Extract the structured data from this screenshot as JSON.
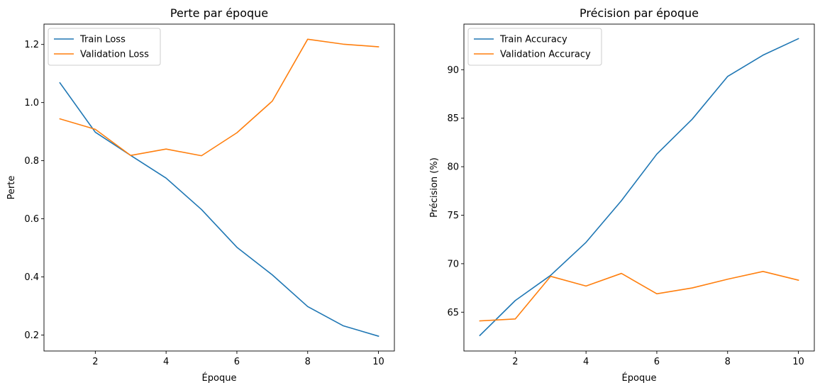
{
  "chart_data": [
    {
      "type": "line",
      "title": "Perte par époque",
      "xlabel": "Époque",
      "ylabel": "Perte",
      "x": [
        1,
        2,
        3,
        4,
        5,
        6,
        7,
        8,
        9,
        10
      ],
      "xlim": [
        0.55,
        10.45
      ],
      "ylim": [
        0.145,
        1.27
      ],
      "xticks": [
        2,
        4,
        6,
        8,
        10
      ],
      "xtick_labels": [
        "2",
        "4",
        "6",
        "8",
        "10"
      ],
      "yticks": [
        0.2,
        0.4,
        0.6,
        0.8,
        1.0,
        1.2
      ],
      "ytick_labels": [
        "0.2",
        "0.4",
        "0.6",
        "0.8",
        "1.0",
        "1.2"
      ],
      "grid": false,
      "legend_position": "top-left",
      "series": [
        {
          "name": "Train Loss",
          "color": "#1f77b4",
          "values": [
            1.068,
            0.898,
            0.818,
            0.74,
            0.632,
            0.502,
            0.407,
            0.298,
            0.232,
            0.196
          ]
        },
        {
          "name": "Validation Loss",
          "color": "#ff7f0e",
          "values": [
            0.944,
            0.908,
            0.818,
            0.84,
            0.817,
            0.896,
            1.005,
            1.218,
            1.201,
            1.192
          ]
        }
      ]
    },
    {
      "type": "line",
      "title": "Précision par époque",
      "xlabel": "Époque",
      "ylabel": "Précision (%)",
      "x": [
        1,
        2,
        3,
        4,
        5,
        6,
        7,
        8,
        9,
        10
      ],
      "xlim": [
        0.55,
        10.45
      ],
      "ylim": [
        61.0,
        94.7
      ],
      "xticks": [
        2,
        4,
        6,
        8,
        10
      ],
      "xtick_labels": [
        "2",
        "4",
        "6",
        "8",
        "10"
      ],
      "yticks": [
        65,
        70,
        75,
        80,
        85,
        90
      ],
      "ytick_labels": [
        "65",
        "70",
        "75",
        "80",
        "85",
        "90"
      ],
      "grid": false,
      "legend_position": "top-left",
      "series": [
        {
          "name": "Train Accuracy",
          "color": "#1f77b4",
          "values": [
            62.6,
            66.2,
            68.8,
            72.2,
            76.5,
            81.3,
            84.9,
            89.3,
            91.5,
            93.2
          ]
        },
        {
          "name": "Validation Accuracy",
          "color": "#ff7f0e",
          "values": [
            64.1,
            64.3,
            68.7,
            67.7,
            69.0,
            66.9,
            67.5,
            68.4,
            69.2,
            68.3
          ]
        }
      ]
    }
  ]
}
